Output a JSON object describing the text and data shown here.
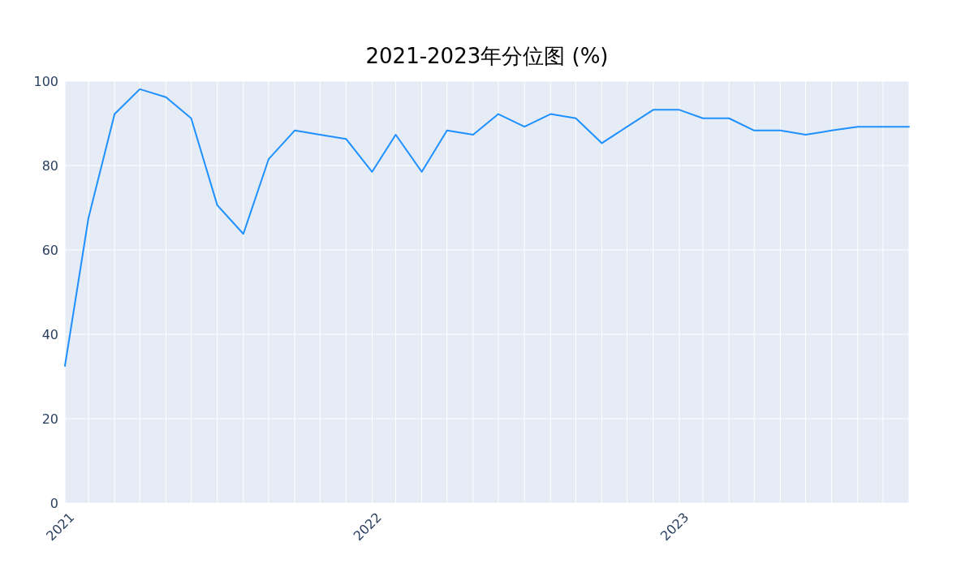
{
  "chart_data": {
    "type": "line",
    "title": "2021-2023年分位图 (%)",
    "x": [
      "2021-01-31",
      "2021-02-28",
      "2021-03-31",
      "2021-04-30",
      "2021-05-31",
      "2021-06-30",
      "2021-07-31",
      "2021-08-31",
      "2021-09-30",
      "2021-10-31",
      "2021-11-30",
      "2021-12-31",
      "2022-01-31",
      "2022-02-28",
      "2022-03-31",
      "2022-04-30",
      "2022-05-31",
      "2022-06-30",
      "2022-07-31",
      "2022-08-31",
      "2022-09-30",
      "2022-10-31",
      "2022-11-30",
      "2022-12-31",
      "2023-01-31",
      "2023-02-28",
      "2023-03-31",
      "2023-04-30",
      "2023-05-31",
      "2023-06-30",
      "2023-07-31",
      "2023-08-31",
      "2023-09-30",
      "2023-10-31"
    ],
    "values": [
      32.5,
      67.6,
      92.2,
      98.1,
      96.2,
      91.2,
      70.6,
      63.8,
      81.5,
      88.3,
      87.3,
      86.3,
      78.5,
      87.3,
      78.5,
      88.3,
      87.3,
      92.2,
      89.2,
      92.2,
      91.2,
      85.3,
      89.2,
      93.2,
      93.2,
      91.2,
      91.2,
      88.3,
      88.3,
      87.3,
      88.3,
      89.2,
      89.2,
      89.2
    ],
    "color": "#1e90ff",
    "xlim": [
      "2021-01-31",
      "2023-10-31"
    ],
    "ylim": [
      0,
      100
    ],
    "xticks": [
      {
        "value": "2021-01-31",
        "label": "2021"
      },
      {
        "value": "2021-02-28",
        "label": null
      },
      {
        "value": "2021-03-31",
        "label": null
      },
      {
        "value": "2021-04-30",
        "label": null
      },
      {
        "value": "2021-05-31",
        "label": null
      },
      {
        "value": "2021-06-30",
        "label": null
      },
      {
        "value": "2021-07-31",
        "label": null
      },
      {
        "value": "2021-08-31",
        "label": null
      },
      {
        "value": "2021-09-30",
        "label": null
      },
      {
        "value": "2021-10-31",
        "label": null
      },
      {
        "value": "2021-11-30",
        "label": null
      },
      {
        "value": "2021-12-31",
        "label": null
      },
      {
        "value": "2022-01-31",
        "label": "2022"
      },
      {
        "value": "2022-02-28",
        "label": null
      },
      {
        "value": "2022-03-31",
        "label": null
      },
      {
        "value": "2022-04-30",
        "label": null
      },
      {
        "value": "2022-05-31",
        "label": null
      },
      {
        "value": "2022-06-30",
        "label": null
      },
      {
        "value": "2022-07-31",
        "label": null
      },
      {
        "value": "2022-08-31",
        "label": null
      },
      {
        "value": "2022-09-30",
        "label": null
      },
      {
        "value": "2022-10-31",
        "label": null
      },
      {
        "value": "2022-11-30",
        "label": null
      },
      {
        "value": "2022-12-31",
        "label": null
      },
      {
        "value": "2023-01-31",
        "label": "2023"
      },
      {
        "value": "2023-02-28",
        "label": null
      },
      {
        "value": "2023-03-31",
        "label": null
      },
      {
        "value": "2023-04-30",
        "label": null
      },
      {
        "value": "2023-05-31",
        "label": null
      },
      {
        "value": "2023-06-30",
        "label": null
      },
      {
        "value": "2023-07-31",
        "label": null
      },
      {
        "value": "2023-08-31",
        "label": null
      },
      {
        "value": "2023-09-30",
        "label": null
      },
      {
        "value": "2023-10-31",
        "label": null
      }
    ],
    "yticks": [
      0,
      20,
      40,
      60,
      80,
      100
    ],
    "grid": true
  }
}
